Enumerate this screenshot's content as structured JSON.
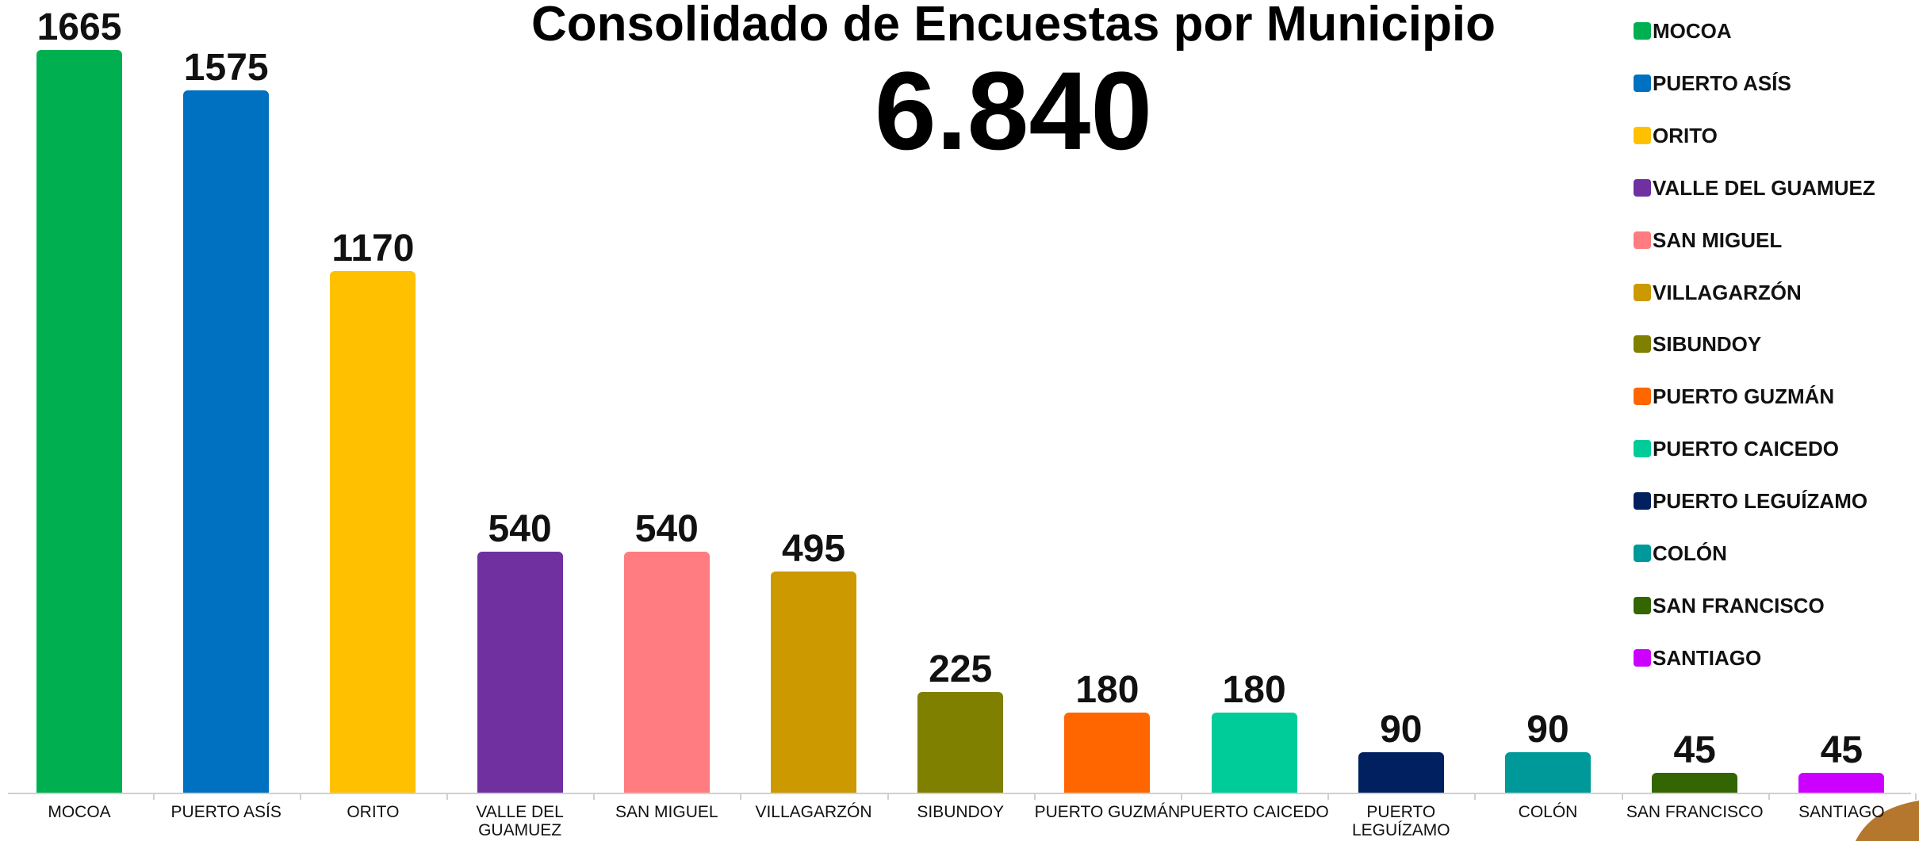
{
  "chart_data": {
    "type": "bar",
    "title": "Consolidado de Encuestas por Municipio",
    "subtitle": "6.840",
    "categories": [
      "MOCOA",
      "PUERTO ASÍS",
      "ORITO",
      "VALLE DEL GUAMUEZ",
      "SAN MIGUEL",
      "VILLAGARZÓN",
      "SIBUNDOY",
      "PUERTO GUZMÁN",
      "PUERTO CAICEDO",
      "PUERTO LEGUÍZAMO",
      "COLÓN",
      "SAN FRANCISCO",
      "SANTIAGO"
    ],
    "values": [
      1665,
      1575,
      1170,
      540,
      540,
      495,
      225,
      180,
      180,
      90,
      90,
      45,
      45
    ],
    "colors": [
      "#00b050",
      "#0070c0",
      "#ffc000",
      "#7030a0",
      "#ff7c80",
      "#cc9900",
      "#808000",
      "#ff6600",
      "#00cc99",
      "#002060",
      "#009999",
      "#336600",
      "#cc00ff"
    ],
    "ylim": [
      0,
      1665
    ],
    "legend": "top-right"
  }
}
